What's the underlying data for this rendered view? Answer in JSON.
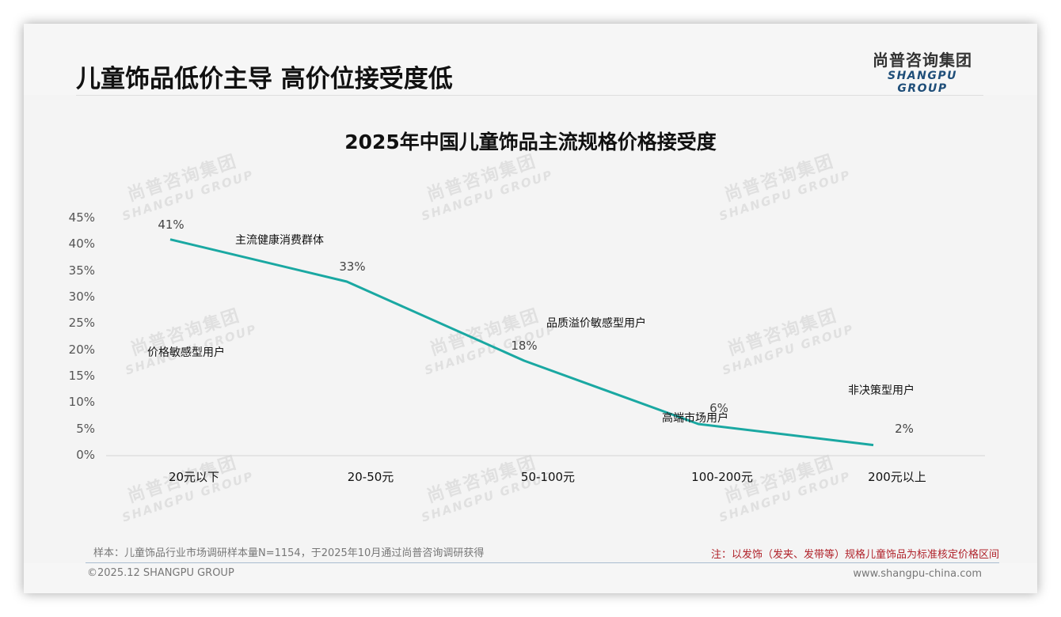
{
  "header": {
    "title": "儿童饰品低价主导 高价位接受度低",
    "logo_cn": "尚普咨询集团",
    "logo_en": "SHANGPU GROUP"
  },
  "watermark": {
    "cn": "尚普咨询集团",
    "en": "SHANGPU GROUP"
  },
  "chart_data": {
    "type": "line",
    "title": "2025年中国儿童饰品主流规格价格接受度",
    "xlabel": "",
    "ylabel": "",
    "categories": [
      "20元以下",
      "20-50元",
      "50-100元",
      "100-200元",
      "200元以上"
    ],
    "series": [
      {
        "name": "价格接受度",
        "values": [
          41,
          33,
          18,
          6,
          2
        ],
        "color": "#1aa8a2"
      }
    ],
    "data_labels": [
      "41%",
      "33%",
      "18%",
      "6%",
      "2%"
    ],
    "y_ticks": [
      "0%",
      "5%",
      "10%",
      "15%",
      "20%",
      "25%",
      "30%",
      "35%",
      "40%",
      "45%"
    ],
    "ylim": [
      0,
      45
    ],
    "grid": false,
    "legend": "none",
    "annotations": [
      {
        "text": "价格敏感型用户",
        "near": "20元以下"
      },
      {
        "text": "主流健康消费群体",
        "near": "20-50元"
      },
      {
        "text": "品质溢价敏感型用户",
        "near": "50-100元"
      },
      {
        "text": "高端市场用户",
        "near": "100-200元"
      },
      {
        "text": "非决策型用户",
        "near": "200元以上"
      }
    ]
  },
  "footer": {
    "source": "样本：儿童饰品行业市场调研样本量N=1154，于2025年10月通过尚普咨询调研获得",
    "note": "注：以发饰（发夹、发带等）规格儿童饰品为标准核定价格区间",
    "copyright": "©2025.12 SHANGPU GROUP",
    "url": "www.shangpu-china.com"
  }
}
